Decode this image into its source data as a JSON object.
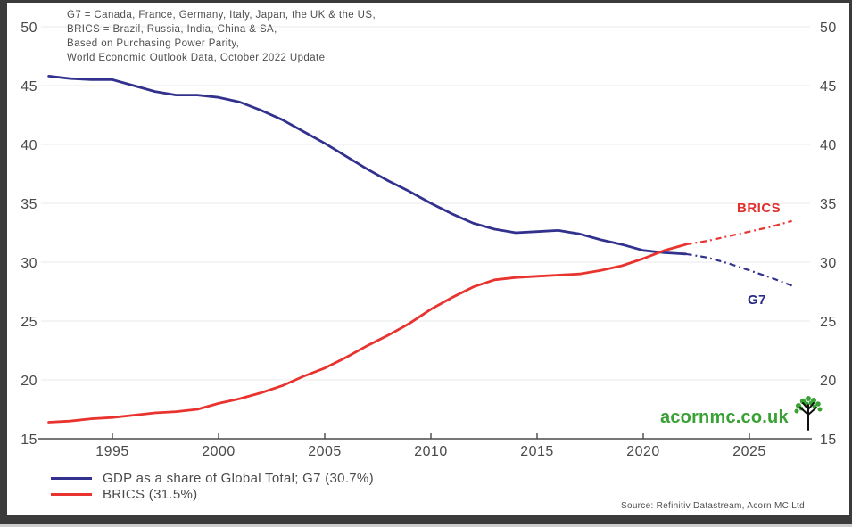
{
  "annotation": {
    "lines": [
      "G7 = Canada, France, Germany, Italy, Japan, the UK & the US,",
      "BRICS = Brazil, Russia, India, China & SA,",
      "Based on Purchasing Power Parity,",
      "World Economic Outlook Data, October 2022 Update"
    ]
  },
  "labels": {
    "brics": "BRICS",
    "g7": "G7"
  },
  "legend": {
    "items": [
      {
        "label": "GDP as a share of Global Total; G7 (30.7%)",
        "color": "#32328e"
      },
      {
        "label": "BRICS (31.5%)",
        "color": "#e8332e"
      }
    ]
  },
  "logo": {
    "text": "acornmc.co.uk",
    "color": "#3aa135"
  },
  "source": "Source: Refinitiv Datastream, Acorn MC Ltd",
  "colors": {
    "g7_line": "#32328e",
    "brics_line": "#e8332e",
    "axis": "#4a4a4a",
    "gridline": "#ededed",
    "logo_green": "#3aa135"
  },
  "chart_data": {
    "type": "line",
    "title": "",
    "xlabel": "",
    "ylabel": "GDP as a share of Global Total (%)",
    "x": [
      1992,
      1993,
      1994,
      1995,
      1996,
      1997,
      1998,
      1999,
      2000,
      2001,
      2002,
      2003,
      2004,
      2005,
      2006,
      2007,
      2008,
      2009,
      2010,
      2011,
      2012,
      2013,
      2014,
      2015,
      2016,
      2017,
      2018,
      2019,
      2020,
      2021,
      2022,
      2023,
      2024,
      2025,
      2026,
      2027
    ],
    "series": [
      {
        "name": "G7",
        "color": "#32328e",
        "forecast_from": 2022,
        "latest_label": "G7 (30.7%)",
        "values": [
          45.8,
          45.6,
          45.5,
          45.5,
          45.0,
          44.5,
          44.2,
          44.2,
          44.0,
          43.6,
          42.9,
          42.1,
          41.1,
          40.1,
          39.0,
          37.9,
          36.9,
          36.0,
          35.0,
          34.1,
          33.3,
          32.8,
          32.5,
          32.6,
          32.7,
          32.4,
          31.9,
          31.5,
          31.0,
          30.8,
          30.7,
          30.4,
          29.9,
          29.3,
          28.7,
          28.0
        ]
      },
      {
        "name": "BRICS",
        "color": "#e8332e",
        "forecast_from": 2022,
        "latest_label": "BRICS (31.5%)",
        "values": [
          16.4,
          16.5,
          16.7,
          16.8,
          17.0,
          17.2,
          17.3,
          17.5,
          18.0,
          18.4,
          18.9,
          19.5,
          20.3,
          21.0,
          21.9,
          22.9,
          23.8,
          24.8,
          26.0,
          27.0,
          27.9,
          28.5,
          28.7,
          28.8,
          28.9,
          29.0,
          29.3,
          29.7,
          30.3,
          31.0,
          31.5,
          31.8,
          32.2,
          32.6,
          33.0,
          33.5
        ]
      }
    ],
    "ylim": [
      15,
      50
    ],
    "yticks": [
      15,
      20,
      25,
      30,
      35,
      40,
      45,
      50
    ],
    "xticks": [
      1995,
      2000,
      2005,
      2010,
      2015,
      2020,
      2025
    ],
    "grid": true,
    "forecast_style": "dash-dot",
    "legend_position": "bottom-left"
  }
}
